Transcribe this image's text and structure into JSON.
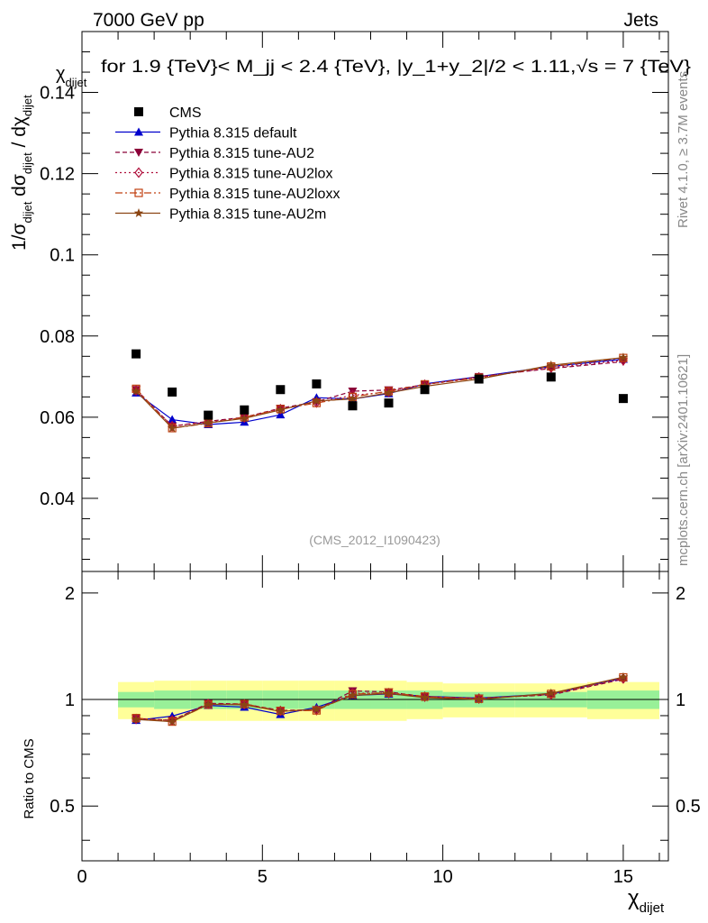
{
  "header": {
    "energy_label": "7000 GeV pp",
    "process_label": "Jets",
    "cut_label": "for 1.9 {TeV}< M_jj < 2.4 {TeV}, |y_1+y_2|/2 < 1.11,√s = 7 {TeV}",
    "title_var": "χ",
    "title_var_sub": "dijet"
  },
  "side_labels": {
    "rivet": "Rivet 4.1.0, ≥ 3.7M events",
    "mcplots": "mcplots.cern.ch [arXiv:2401.10621]"
  },
  "analysis_id": "(CMS_2012_I1090423)",
  "colors": {
    "cms": "#000000",
    "default": "#0000cc",
    "au2": "#8b0038",
    "au2lox": "#b0103c",
    "au2loxx": "#c04010",
    "au2m": "#8b4513",
    "band_inner": "#98f098",
    "band_outer": "#ffff99"
  },
  "chart_data": {
    "type": "line",
    "main_panel": {
      "ylabel_parts": [
        "1/σ",
        "dijet",
        " dσ",
        "dijet",
        " / dχ",
        "dijet"
      ],
      "ylim": [
        0.022,
        0.155
      ],
      "yticks": [
        0.04,
        0.06,
        0.08,
        0.1,
        0.12,
        0.14
      ],
      "ytick_labels": [
        "0.04",
        "0.06",
        "0.08",
        "0.1",
        "0.12",
        "0.14"
      ]
    },
    "ratio_panel": {
      "ylabel": "Ratio to CMS",
      "ylim": [
        0.35,
        2.3
      ],
      "yticks": [
        0.5,
        1,
        2
      ],
      "ytick_labels": [
        "0.5",
        "1",
        "2"
      ]
    },
    "x_axis": {
      "label": "χ",
      "label_sub": "dijet",
      "xlim": [
        0,
        16.25
      ],
      "xticks": [
        0,
        5,
        10,
        15
      ],
      "xtick_labels": [
        "0",
        "5",
        "10",
        "15"
      ]
    },
    "x": [
      1.5,
      2.5,
      3.5,
      4.5,
      5.5,
      6.5,
      7.5,
      8.5,
      9.5,
      11,
      13,
      15
    ],
    "cms": {
      "name": "CMS",
      "values": [
        0.0756,
        0.0662,
        0.0605,
        0.0618,
        0.0668,
        0.0682,
        0.0628,
        0.0635,
        0.0668,
        0.0694,
        0.0699,
        0.0646
      ]
    },
    "series": [
      {
        "key": "default",
        "name": "Pythia 8.315 default",
        "marker": "triangle-up",
        "dash": "",
        "values": [
          0.066,
          0.0594,
          0.0582,
          0.0588,
          0.0606,
          0.0648,
          0.0645,
          0.0658,
          0.0682,
          0.07,
          0.0725,
          0.0743
        ]
      },
      {
        "key": "au2",
        "name": "Pythia 8.315 tune-AU2",
        "marker": "triangle-down",
        "dash": "5,3",
        "values": [
          0.0668,
          0.0578,
          0.059,
          0.06,
          0.0622,
          0.0638,
          0.0664,
          0.0667,
          0.068,
          0.07,
          0.072,
          0.0737
        ]
      },
      {
        "key": "au2lox",
        "name": "Pythia 8.315 tune-AU2lox",
        "marker": "diamond",
        "dash": "2,3",
        "values": [
          0.0666,
          0.0578,
          0.0588,
          0.0599,
          0.062,
          0.0636,
          0.0654,
          0.0662,
          0.068,
          0.0698,
          0.0722,
          0.074
        ]
      },
      {
        "key": "au2loxx",
        "name": "Pythia 8.315 tune-AU2loxx",
        "marker": "square-open",
        "dash": "8,3,2,3",
        "values": [
          0.067,
          0.0573,
          0.0585,
          0.06,
          0.062,
          0.0635,
          0.065,
          0.0664,
          0.0681,
          0.0697,
          0.0725,
          0.0746
        ]
      },
      {
        "key": "au2m",
        "name": "Pythia 8.315 tune-AU2m",
        "marker": "star",
        "dash": "",
        "values": [
          0.0664,
          0.0573,
          0.0586,
          0.0597,
          0.0618,
          0.064,
          0.0645,
          0.066,
          0.0676,
          0.0694,
          0.0728,
          0.0747
        ]
      }
    ],
    "ratio_band": {
      "edges": [
        1,
        2,
        3,
        4,
        5,
        6,
        7,
        8,
        9,
        10,
        12,
        14,
        16
      ],
      "inner": [
        0.05,
        0.06,
        0.06,
        0.06,
        0.06,
        0.06,
        0.06,
        0.06,
        0.06,
        0.05,
        0.05,
        0.06
      ],
      "outer": [
        0.12,
        0.13,
        0.13,
        0.13,
        0.13,
        0.13,
        0.13,
        0.13,
        0.12,
        0.11,
        0.11,
        0.12
      ]
    }
  }
}
